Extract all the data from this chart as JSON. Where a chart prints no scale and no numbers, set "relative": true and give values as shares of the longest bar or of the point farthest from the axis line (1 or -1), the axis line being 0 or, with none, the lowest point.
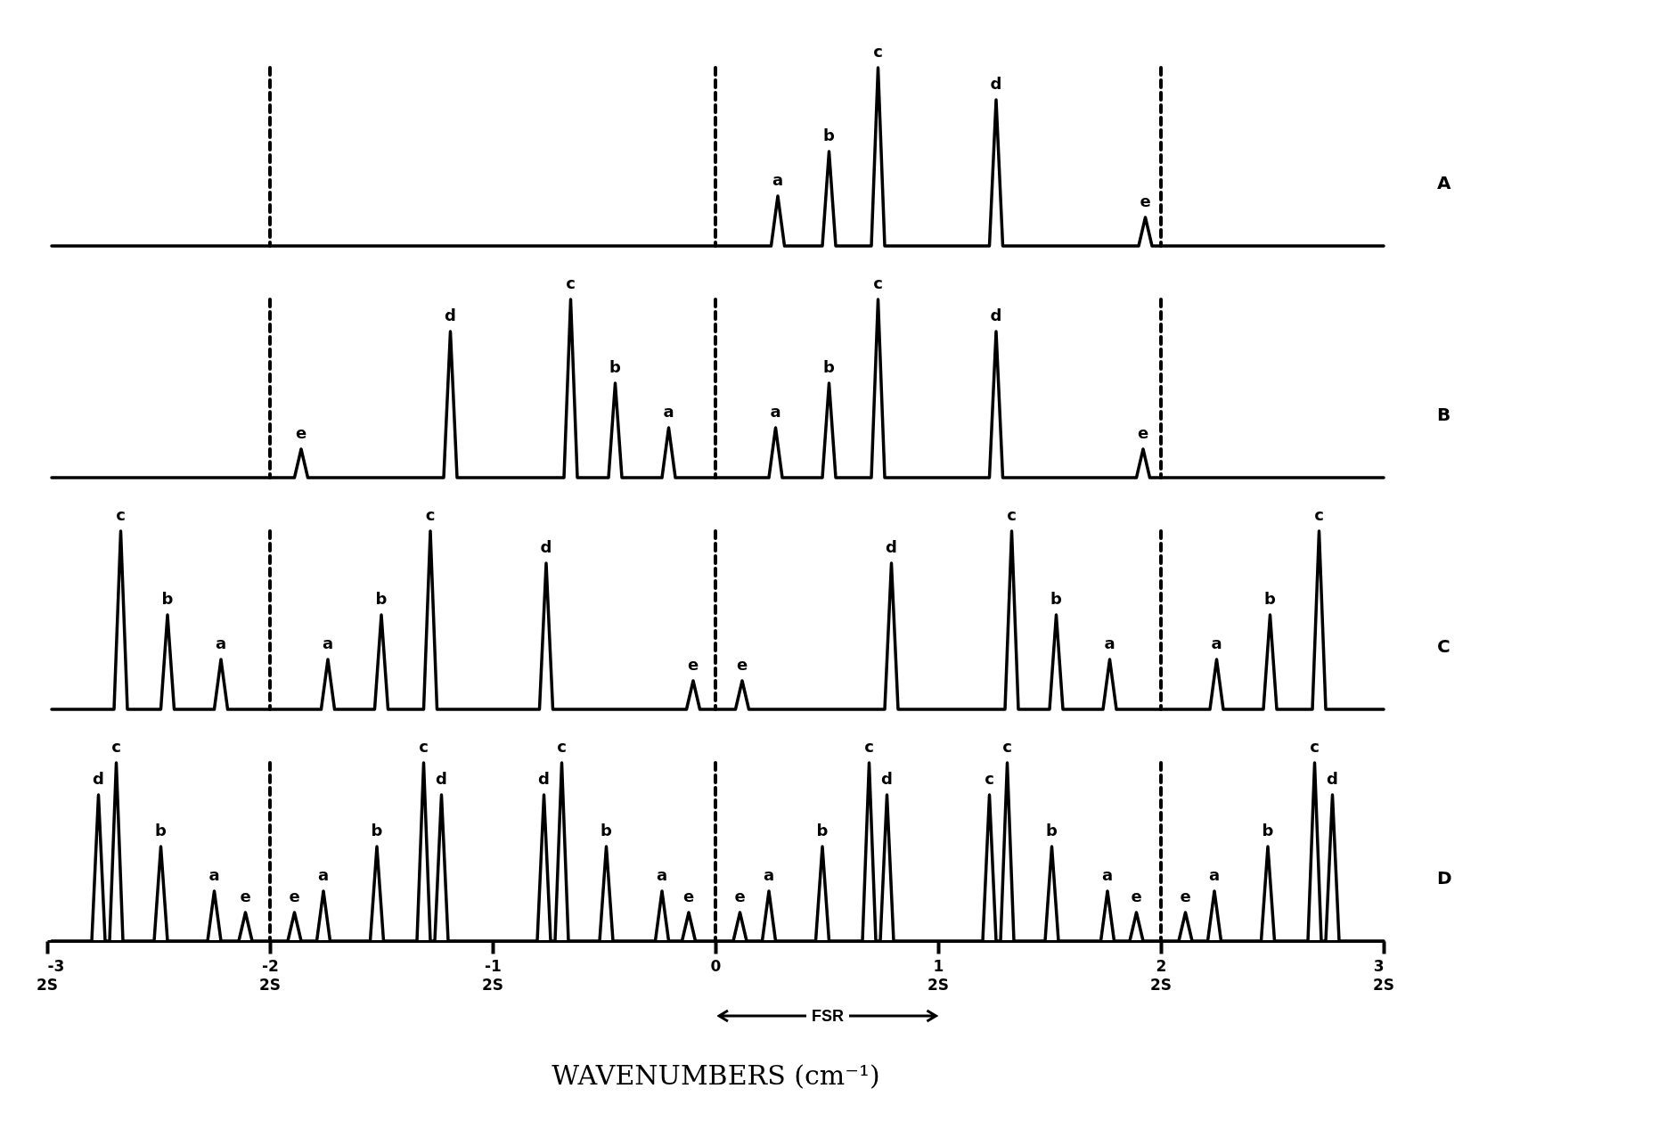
{
  "chart_data": [
    {
      "type": "line",
      "relative": true,
      "tick_labels": false,
      "grid": false,
      "xlim": [
        -3,
        3
      ],
      "x": [
        -2.98,
        0.25,
        0.28,
        0.31,
        0.48,
        0.51,
        0.54,
        0.7,
        0.73,
        0.76,
        1.23,
        1.26,
        1.29,
        1.9,
        1.93,
        1.96,
        3
      ],
      "series": [
        {
          "name": "A",
          "color": "#000000",
          "values": [
            0,
            0,
            0.28,
            0,
            0,
            0.53,
            0,
            0,
            1,
            0,
            0,
            0.82,
            0,
            0,
            0.16,
            0,
            0
          ]
        }
      ],
      "ref_lines": [
        {
          "axis": "x",
          "value": -2,
          "color": "#000000",
          "line_style": "dashed"
        },
        {
          "axis": "x",
          "value": 0,
          "color": "#000000",
          "line_style": "dashed"
        },
        {
          "axis": "x",
          "value": 2,
          "color": "#000000",
          "line_style": "dashed"
        }
      ],
      "annotations": [
        {
          "text": "a",
          "x": 0.28,
          "y": 0.28
        },
        {
          "text": "b",
          "x": 0.51,
          "y": 0.53
        },
        {
          "text": "c",
          "x": 0.73,
          "y": 1
        },
        {
          "text": "d",
          "x": 1.26,
          "y": 0.82
        },
        {
          "text": "e",
          "x": 1.93,
          "y": 0.16
        }
      ]
    },
    {
      "type": "line",
      "relative": true,
      "tick_labels": false,
      "grid": false,
      "xlim": [
        -3,
        3
      ],
      "x": [
        -2.98,
        -1.89,
        -1.86,
        -1.83,
        -1.22,
        -1.19,
        -1.16,
        -0.68,
        -0.65,
        -0.62,
        -0.48,
        -0.45,
        -0.42,
        -0.24,
        -0.21,
        -0.18,
        0.24,
        0.27,
        0.3,
        0.48,
        0.51,
        0.54,
        0.7,
        0.73,
        0.76,
        1.23,
        1.26,
        1.29,
        1.89,
        1.92,
        1.95,
        3
      ],
      "series": [
        {
          "name": "B",
          "color": "#000000",
          "values": [
            0,
            0,
            0.16,
            0,
            0,
            0.82,
            0,
            0,
            1,
            0,
            0,
            0.53,
            0,
            0,
            0.28,
            0,
            0,
            0.28,
            0,
            0,
            0.53,
            0,
            0,
            1,
            0,
            0,
            0.82,
            0,
            0,
            0.16,
            0,
            0
          ]
        }
      ],
      "ref_lines": [
        {
          "axis": "x",
          "value": -2,
          "color": "#000000",
          "line_style": "dashed"
        },
        {
          "axis": "x",
          "value": 0,
          "color": "#000000",
          "line_style": "dashed"
        },
        {
          "axis": "x",
          "value": 2,
          "color": "#000000",
          "line_style": "dashed"
        }
      ],
      "annotations": [
        {
          "text": "e",
          "x": -1.86,
          "y": 0.16
        },
        {
          "text": "d",
          "x": -1.19,
          "y": 0.82
        },
        {
          "text": "c",
          "x": -0.65,
          "y": 1
        },
        {
          "text": "b",
          "x": -0.45,
          "y": 0.53
        },
        {
          "text": "a",
          "x": -0.21,
          "y": 0.28
        },
        {
          "text": "a",
          "x": 0.27,
          "y": 0.28
        },
        {
          "text": "b",
          "x": 0.51,
          "y": 0.53
        },
        {
          "text": "c",
          "x": 0.73,
          "y": 1
        },
        {
          "text": "d",
          "x": 1.26,
          "y": 0.82
        },
        {
          "text": "e",
          "x": 1.92,
          "y": 0.16
        }
      ]
    },
    {
      "type": "line",
      "relative": true,
      "tick_labels": false,
      "grid": false,
      "xlim": [
        -3,
        3
      ],
      "x": [
        -2.98,
        -2.7,
        -2.67,
        -2.64,
        -2.49,
        -2.46,
        -2.43,
        -2.25,
        -2.22,
        -2.19,
        -1.77,
        -1.74,
        -1.71,
        -1.53,
        -1.5,
        -1.47,
        -1.31,
        -1.28,
        -1.25,
        -0.79,
        -0.76,
        -0.73,
        -0.13,
        -0.1,
        -0.07,
        0.09,
        0.12,
        0.15,
        0.76,
        0.79,
        0.82,
        1.3,
        1.33,
        1.36,
        1.5,
        1.53,
        1.56,
        1.74,
        1.77,
        1.8,
        2.22,
        2.25,
        2.28,
        2.46,
        2.49,
        2.52,
        2.68,
        2.71,
        2.74,
        3
      ],
      "series": [
        {
          "name": "C",
          "color": "#000000",
          "values": [
            0,
            0,
            1,
            0,
            0,
            0.53,
            0,
            0,
            0.28,
            0,
            0,
            0.28,
            0,
            0,
            0.53,
            0,
            0,
            1,
            0,
            0,
            0.82,
            0,
            0,
            0.16,
            0,
            0,
            0.16,
            0,
            0,
            0.82,
            0,
            0,
            1,
            0,
            0,
            0.53,
            0,
            0,
            0.28,
            0,
            0,
            0.28,
            0,
            0,
            0.53,
            0,
            0,
            1,
            0,
            0
          ]
        }
      ],
      "ref_lines": [
        {
          "axis": "x",
          "value": -2,
          "color": "#000000",
          "line_style": "dashed"
        },
        {
          "axis": "x",
          "value": 0,
          "color": "#000000",
          "line_style": "dashed"
        },
        {
          "axis": "x",
          "value": 2,
          "color": "#000000",
          "line_style": "dashed"
        }
      ],
      "annotations": [
        {
          "text": "c",
          "x": -2.67,
          "y": 1
        },
        {
          "text": "b",
          "x": -2.46,
          "y": 0.53
        },
        {
          "text": "a",
          "x": -2.22,
          "y": 0.28
        },
        {
          "text": "a",
          "x": -1.74,
          "y": 0.28
        },
        {
          "text": "b",
          "x": -1.5,
          "y": 0.53
        },
        {
          "text": "c",
          "x": -1.28,
          "y": 1
        },
        {
          "text": "d",
          "x": -0.76,
          "y": 0.82
        },
        {
          "text": "e",
          "x": -0.1,
          "y": 0.16
        },
        {
          "text": "e",
          "x": 0.12,
          "y": 0.16
        },
        {
          "text": "d",
          "x": 0.79,
          "y": 0.82
        },
        {
          "text": "c",
          "x": 1.33,
          "y": 1
        },
        {
          "text": "b",
          "x": 1.53,
          "y": 0.53
        },
        {
          "text": "a",
          "x": 1.77,
          "y": 0.28
        },
        {
          "text": "a",
          "x": 2.25,
          "y": 0.28
        },
        {
          "text": "b",
          "x": 2.49,
          "y": 0.53
        },
        {
          "text": "c",
          "x": 2.71,
          "y": 1
        }
      ]
    },
    {
      "type": "line",
      "xlabel": "WAVENUMBERS (cm⁻¹)",
      "relative": true,
      "grid": false,
      "xlim": [
        -3,
        3
      ],
      "xticks": [
        -3,
        -2,
        -1,
        0,
        1,
        2,
        3
      ],
      "x": [
        -2.98,
        -2.8,
        -2.77,
        -2.74,
        -2.72,
        -2.69,
        -2.66,
        -2.52,
        -2.49,
        -2.46,
        -2.28,
        -2.25,
        -2.22,
        -2.14,
        -2.11,
        -2.08,
        -1.92,
        -1.89,
        -1.86,
        -1.79,
        -1.76,
        -1.73,
        -1.55,
        -1.52,
        -1.49,
        -1.34,
        -1.31,
        -1.28,
        -1.26,
        -1.23,
        -1.2,
        -0.8,
        -0.77,
        -0.74,
        -0.72,
        -0.69,
        -0.66,
        -0.52,
        -0.49,
        -0.46,
        -0.27,
        -0.24,
        -0.21,
        -0.15,
        -0.12,
        -0.09,
        0.08,
        0.11,
        0.14,
        0.21,
        0.24,
        0.27,
        0.45,
        0.48,
        0.51,
        0.66,
        0.69,
        0.72,
        0.74,
        0.77,
        0.8,
        1.2,
        1.23,
        1.26,
        1.28,
        1.31,
        1.34,
        1.48,
        1.51,
        1.54,
        1.73,
        1.76,
        1.79,
        1.86,
        1.89,
        1.92,
        2.08,
        2.11,
        2.14,
        2.21,
        2.24,
        2.27,
        2.45,
        2.48,
        2.51,
        2.66,
        2.69,
        2.72,
        2.74,
        2.77,
        2.8,
        3
      ],
      "series": [
        {
          "name": "D",
          "color": "#000000",
          "values": [
            0,
            0,
            0.82,
            0,
            0,
            1,
            0,
            0,
            0.53,
            0,
            0,
            0.28,
            0,
            0,
            0.16,
            0,
            0,
            0.16,
            0,
            0,
            0.28,
            0,
            0,
            0.53,
            0,
            0,
            1,
            0,
            0,
            0.82,
            0,
            0,
            0.82,
            0,
            0,
            1,
            0,
            0,
            0.53,
            0,
            0,
            0.28,
            0,
            0,
            0.16,
            0,
            0,
            0.16,
            0,
            0,
            0.28,
            0,
            0,
            0.53,
            0,
            0,
            1,
            0,
            0,
            0.82,
            0,
            0,
            0.82,
            0,
            0,
            1,
            0,
            0,
            0.53,
            0,
            0,
            0.28,
            0,
            0,
            0.16,
            0,
            0,
            0.16,
            0,
            0,
            0.28,
            0,
            0,
            0.53,
            0,
            0,
            1,
            0,
            0,
            0.82,
            0,
            0
          ]
        }
      ],
      "ref_lines": [
        {
          "axis": "x",
          "value": -2,
          "color": "#000000",
          "line_style": "dashed"
        },
        {
          "axis": "x",
          "value": 0,
          "color": "#000000",
          "line_style": "dashed"
        },
        {
          "axis": "x",
          "value": 2,
          "color": "#000000",
          "line_style": "dashed"
        }
      ],
      "annotations": [
        "2S",
        "2S",
        "2S",
        "2S",
        "2S",
        "2S",
        "FSR",
        {
          "text": "d",
          "x": -2.77,
          "y": 0.82
        },
        {
          "text": "c",
          "x": -2.69,
          "y": 1
        },
        {
          "text": "b",
          "x": -2.49,
          "y": 0.53
        },
        {
          "text": "a",
          "x": -2.25,
          "y": 0.28
        },
        {
          "text": "e",
          "x": -2.11,
          "y": 0.16
        },
        {
          "text": "e",
          "x": -1.89,
          "y": 0.16
        },
        {
          "text": "a",
          "x": -1.76,
          "y": 0.28
        },
        {
          "text": "b",
          "x": -1.52,
          "y": 0.53
        },
        {
          "text": "c",
          "x": -1.31,
          "y": 1
        },
        {
          "text": "d",
          "x": -1.23,
          "y": 0.82
        },
        {
          "text": "d",
          "x": -0.77,
          "y": 0.82
        },
        {
          "text": "c",
          "x": -0.69,
          "y": 1
        },
        {
          "text": "b",
          "x": -0.49,
          "y": 0.53
        },
        {
          "text": "a",
          "x": -0.24,
          "y": 0.28
        },
        {
          "text": "e",
          "x": -0.12,
          "y": 0.16
        },
        {
          "text": "e",
          "x": 0.11,
          "y": 0.16
        },
        {
          "text": "a",
          "x": 0.24,
          "y": 0.28
        },
        {
          "text": "b",
          "x": 0.48,
          "y": 0.53
        },
        {
          "text": "c",
          "x": 0.69,
          "y": 1
        },
        {
          "text": "d",
          "x": 0.77,
          "y": 0.82
        },
        {
          "text": "c",
          "x": 1.23,
          "y": 0.82
        },
        {
          "text": "c",
          "x": 1.31,
          "y": 1
        },
        {
          "text": "b",
          "x": 1.51,
          "y": 0.53
        },
        {
          "text": "a",
          "x": 1.76,
          "y": 0.28
        },
        {
          "text": "e",
          "x": 1.89,
          "y": 0.16
        },
        {
          "text": "e",
          "x": 2.11,
          "y": 0.16
        },
        {
          "text": "a",
          "x": 2.24,
          "y": 0.28
        },
        {
          "text": "b",
          "x": 2.48,
          "y": 0.53
        },
        {
          "text": "c",
          "x": 2.69,
          "y": 1
        },
        {
          "text": "d",
          "x": 2.77,
          "y": 0.82
        }
      ]
    }
  ]
}
